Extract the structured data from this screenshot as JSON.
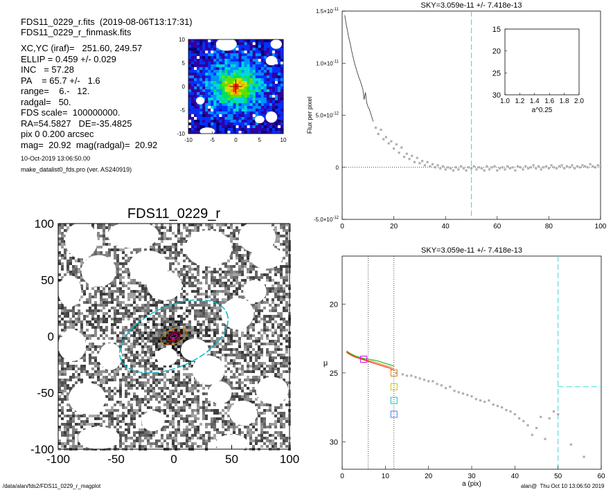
{
  "header": {
    "line1": "FDS11_0229_r.fits  (2019-08-06T13:17:31)",
    "line2": "FDS11_0229_r_finmask.fits",
    "params": [
      "XC,YC (iraf)=   251.60, 249.57",
      "ELLIP = 0.459 +/- 0.029",
      "INC   = 57.28",
      "PA    = 65.7 +/-   1.6",
      "range=    6.-   12.",
      "radgal=   50.",
      "FDS scale=  100000000.",
      "RA=54.5827   DE=-35.4825",
      "pix 0 0.200 arcsec",
      "mag=  20.92  mag(radgal)=  20.92"
    ],
    "date": "10-Oct-2019 13:06:50.00",
    "program": "make_datalist0_fds.pro (ver. AS240919)"
  },
  "footer": {
    "path": "/data/alan/fds2/FDS11_0229_r_magplot",
    "stamp": "alan@  Thu Oct 10 13:06:50 2019"
  },
  "chart_data": [
    {
      "type": "heatmap",
      "name": "thumbnail",
      "xlim": [
        -10,
        10
      ],
      "ylim": [
        -10,
        10
      ],
      "xticks": [
        "-10",
        "-5",
        "0",
        "5",
        "10"
      ],
      "yticks": [
        "10",
        "5",
        "0",
        "-5",
        "-10"
      ]
    },
    {
      "type": "scatter",
      "name": "image",
      "title": "FDS11_0229_r",
      "xlim": [
        -100,
        100
      ],
      "ylim": [
        -100,
        100
      ],
      "xticks": [
        "-100",
        "-50",
        "0",
        "50",
        "100"
      ],
      "yticks": [
        "100",
        "50",
        "0",
        "-50",
        "-100"
      ],
      "sky_ellipse": {
        "cx": 0,
        "cy": 0,
        "a": 50,
        "b": 27,
        "pa_deg": 155.7,
        "color": "#00b8c8"
      },
      "inner_ellipses": [
        {
          "a": 12,
          "b": 6.5,
          "color": "#e08000"
        },
        {
          "a": 6,
          "b": 3.3,
          "color": "#ff0000"
        },
        {
          "a": 3,
          "b": 1.7,
          "color": "#e000e0"
        }
      ],
      "masked_regions": [
        [
          -80,
          85,
          14,
          16
        ],
        [
          -35,
          90,
          22,
          12
        ],
        [
          30,
          78,
          20,
          16
        ],
        [
          72,
          88,
          16,
          14
        ],
        [
          -90,
          40,
          10,
          14
        ],
        [
          -22,
          62,
          17,
          14
        ],
        [
          -65,
          58,
          15,
          14
        ],
        [
          80,
          70,
          14,
          10
        ],
        [
          -8,
          45,
          15,
          13
        ],
        [
          55,
          20,
          14,
          14
        ],
        [
          -88,
          -8,
          12,
          14
        ],
        [
          -55,
          -18,
          10,
          12
        ],
        [
          18,
          -12,
          12,
          10
        ],
        [
          30,
          -30,
          14,
          13
        ],
        [
          -6,
          -18,
          9,
          8
        ],
        [
          -75,
          -55,
          16,
          14
        ],
        [
          85,
          -48,
          14,
          12
        ],
        [
          60,
          -68,
          12,
          11
        ],
        [
          -18,
          -75,
          10,
          9
        ],
        [
          -65,
          -90,
          18,
          10
        ],
        [
          50,
          -95,
          14,
          8
        ],
        [
          70,
          40,
          10,
          10
        ],
        [
          40,
          -50,
          10,
          10
        ]
      ]
    },
    {
      "type": "scatter",
      "name": "sky_profile",
      "title": "SKY=3.059e-11 +/- 7.418e-13",
      "ylabel": "Flux per pixel",
      "xlim": [
        0,
        100
      ],
      "ylim": [
        -5e-12,
        1.5e-11
      ],
      "xticks": [
        "0",
        "20",
        "40",
        "60",
        "80",
        "100"
      ],
      "yticks": [
        "1.5×10",
        "1.0×10",
        "5.0×10",
        "0",
        "-5.0×10"
      ],
      "ytick_exps": [
        "-11",
        "-11",
        "-12",
        "",
        "-12"
      ],
      "curve_x": [
        1.0,
        1.5,
        2.0,
        2.5,
        3.0,
        3.5,
        4.0,
        4.5,
        5.0,
        5.5,
        6.0,
        6.5,
        7.0,
        7.5,
        8.0,
        8.5,
        9.0,
        9.5,
        10.0,
        10.5,
        11.0,
        11.5,
        12.0
      ],
      "curve_y": [
        1.46e-11,
        1.38e-11,
        1.32e-11,
        1.25e-11,
        1.2e-11,
        1.14e-11,
        1.08e-11,
        1.03e-11,
        9.8e-12,
        9.4e-12,
        9e-12,
        8.6e-12,
        8.3e-12,
        7.9e-12,
        7.5e-12,
        6.5e-12,
        7.2e-12,
        6.2e-12,
        5.8e-12,
        5.6e-12,
        5.2e-12,
        4.8e-12,
        4.4e-12
      ],
      "points_x": [
        13,
        14,
        15,
        16,
        17,
        18,
        19,
        20,
        21,
        22,
        23,
        24,
        25,
        26,
        27,
        28,
        29,
        30,
        31,
        32,
        33,
        34,
        35,
        36,
        37,
        38,
        39,
        40,
        41,
        42,
        43,
        44,
        45,
        46,
        47,
        48,
        49,
        50,
        51,
        52,
        53,
        54,
        55,
        56,
        57,
        58,
        59,
        60,
        61,
        62,
        63,
        64,
        65,
        66,
        67,
        68,
        69,
        70,
        71,
        72,
        73,
        74,
        75,
        76,
        77,
        78,
        79,
        80,
        81,
        82,
        83,
        84,
        85,
        86,
        87,
        88,
        89,
        90,
        91,
        92,
        93,
        94,
        95,
        96,
        97,
        98,
        99,
        100
      ],
      "points_y": [
        3.8e-12,
        3.2e-12,
        3.6e-12,
        2.7e-12,
        2.9e-12,
        2.3e-12,
        2.5e-12,
        1.8e-12,
        2.2e-12,
        1.4e-12,
        1.9e-12,
        1e-12,
        1.3e-12,
        8e-13,
        1.1e-12,
        5e-13,
        9e-13,
        4e-13,
        6e-13,
        2e-13,
        5e-13,
        1e-13,
        3e-13,
        0.0,
        2e-13,
        -1e-13,
        1e-13,
        -2e-13,
        0.0,
        -1e-13,
        -3e-13,
        0.0,
        -2e-13,
        1e-13,
        -1e-13,
        -3e-13,
        0.0,
        -1e-13,
        1e-13,
        -2e-13,
        0.0,
        -1e-13,
        -3e-13,
        1e-13,
        -2e-13,
        0.0,
        1e-13,
        -3e-13,
        -1e-13,
        0.0,
        -2e-13,
        1e-13,
        -1e-13,
        0.0,
        -3e-13,
        1e-13,
        0.0,
        -2e-13,
        1e-13,
        -1e-13,
        0.0,
        2e-13,
        -1e-13,
        1e-13,
        -2e-13,
        0.0,
        1e-13,
        -1e-13,
        2e-13,
        0.0,
        -1e-13,
        1e-13,
        2e-13,
        -1e-13,
        1e-13,
        0.0,
        2e-13,
        -1e-13,
        1e-13,
        0.0,
        2e-13,
        1e-13,
        0.0,
        3e-13,
        1e-13,
        0.0,
        2e-13,
        1e-13
      ],
      "sky_radius": 50,
      "inset": {
        "xlabel": "a^0.25",
        "xlim": [
          1.0,
          2.0
        ],
        "ylim": [
          30,
          15
        ],
        "xticks": [
          "1.0",
          "1.2",
          "1.4",
          "1.6",
          "1.8",
          "2.0"
        ],
        "yticks": [
          "15",
          "20",
          "25",
          "30"
        ]
      }
    },
    {
      "type": "scatter",
      "name": "surface_brightness",
      "title": "SKY=3.059e-11 +/- 7.418e-13",
      "xlabel": "a (pix)",
      "ylabel": "μ",
      "xlim": [
        0,
        60
      ],
      "ylim": [
        32,
        16.5
      ],
      "xticks": [
        "0",
        "10",
        "20",
        "30",
        "40",
        "50",
        "60"
      ],
      "yticks": [
        "20",
        "25",
        "30"
      ],
      "range_lines": [
        6,
        12
      ],
      "sky_radius": 50,
      "sky_level": 26,
      "series": [
        {
          "name": "red",
          "color": "#ff0000",
          "x": [
            1,
            2,
            3,
            4,
            5,
            6,
            7,
            8,
            9,
            10,
            11,
            12
          ],
          "y": [
            23.5,
            23.7,
            23.85,
            23.95,
            24.05,
            24.15,
            24.25,
            24.35,
            24.45,
            24.55,
            24.65,
            24.8
          ]
        },
        {
          "name": "orange",
          "color": "#e08000",
          "x": [
            1,
            2,
            3,
            4,
            5,
            6,
            7,
            8,
            9,
            10,
            11,
            12
          ],
          "y": [
            23.45,
            23.65,
            23.8,
            23.9,
            24.0,
            24.1,
            24.15,
            24.25,
            24.35,
            24.45,
            24.55,
            24.7
          ]
        },
        {
          "name": "green",
          "color": "#00b000",
          "x": [
            1,
            2,
            3,
            4,
            5,
            6,
            7,
            8,
            9,
            10,
            11,
            12
          ],
          "y": [
            23.4,
            23.6,
            23.75,
            23.85,
            23.95,
            24.0,
            24.05,
            24.1,
            24.2,
            24.3,
            24.4,
            24.5
          ]
        }
      ],
      "points_x": [
        12.5,
        14,
        15,
        16,
        17,
        18,
        19,
        20,
        21,
        22,
        23,
        24,
        25,
        26,
        27,
        28,
        29,
        30,
        31,
        32,
        33,
        34,
        35,
        36,
        37,
        38,
        39,
        40,
        41,
        42,
        43,
        44,
        45,
        46,
        47,
        48,
        49,
        50,
        53,
        56
      ],
      "points_y": [
        25.0,
        25.1,
        25.2,
        25.2,
        25.3,
        25.4,
        25.5,
        25.6,
        25.6,
        25.8,
        25.9,
        26.1,
        26.0,
        26.3,
        26.4,
        26.5,
        26.6,
        26.7,
        26.9,
        27.0,
        27.1,
        27.0,
        27.3,
        27.4,
        27.5,
        27.7,
        27.8,
        28.0,
        28.3,
        28.5,
        28.8,
        29.5,
        29.0,
        28.2,
        29.8,
        28.3,
        27.8,
        28.0,
        30.2,
        31.1
      ],
      "markers": [
        {
          "x": 5,
          "y": 24.0,
          "color": "#e000e0"
        },
        {
          "x": 12,
          "y": 25.0,
          "color": "#e08000"
        },
        {
          "x": 12,
          "y": 26.0,
          "color": "#c8c800"
        },
        {
          "x": 12,
          "y": 27.0,
          "color": "#00c8c8"
        },
        {
          "x": 12,
          "y": 28.0,
          "color": "#4080ff"
        }
      ]
    }
  ]
}
